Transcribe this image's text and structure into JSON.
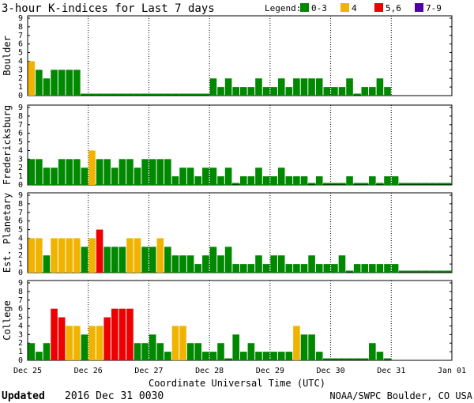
{
  "header": {
    "title": "3-hour K-indices for Last 7 days",
    "legend_label": "Legend:",
    "legend": [
      {
        "label": "0-3",
        "color": "#008800"
      },
      {
        "label": "4",
        "color": "#f0b400"
      },
      {
        "label": "5,6",
        "color": "#ee0000"
      },
      {
        "label": "7-9",
        "color": "#5000a0"
      }
    ]
  },
  "footer": {
    "updated_label": "Updated",
    "updated_value": "2016 Dec 31 0030",
    "credit": "NOAA/SWPC Boulder, CO USA"
  },
  "chart_data": {
    "type": "bar",
    "xlabel": "Coordinate Universal Time (UTC)",
    "x_ticks": [
      "Dec 25",
      "Dec 26",
      "Dec 27",
      "Dec 28",
      "Dec 29",
      "Dec 30",
      "Dec 31",
      "Jan 01"
    ],
    "ylim": [
      0,
      9
    ],
    "y_ticks": [
      0,
      1,
      2,
      3,
      4,
      5,
      6,
      7,
      8,
      9
    ],
    "interval_hours": 3,
    "intervals_per_day": 8,
    "color_scale": [
      {
        "range": "0-3",
        "color": "#008800"
      },
      {
        "range": "4",
        "color": "#f0b400"
      },
      {
        "range": "5,6",
        "color": "#ee0000"
      },
      {
        "range": "7-9",
        "color": "#5000a0"
      }
    ],
    "panels": [
      {
        "station": "Boulder",
        "values": [
          4,
          3,
          2,
          3,
          3,
          3,
          3,
          0,
          0,
          0,
          0,
          0,
          0,
          0,
          0,
          0,
          0,
          0,
          0,
          0,
          0,
          0,
          0,
          0,
          2,
          1,
          2,
          1,
          1,
          1,
          2,
          1,
          1,
          2,
          1,
          2,
          2,
          2,
          2,
          1,
          1,
          1,
          2,
          0,
          1,
          1,
          2,
          1
        ]
      },
      {
        "station": "Fredericksburg",
        "values": [
          3,
          3,
          2,
          2,
          3,
          3,
          3,
          2,
          4,
          3,
          3,
          2,
          3,
          3,
          2,
          3,
          3,
          3,
          3,
          1,
          2,
          2,
          1,
          2,
          2,
          1,
          2,
          0,
          1,
          1,
          2,
          1,
          1,
          2,
          1,
          1,
          1,
          0,
          1,
          0,
          0,
          0,
          1,
          0,
          0,
          1,
          0,
          1,
          1,
          0,
          0,
          0,
          0,
          0,
          0,
          0
        ]
      },
      {
        "station": "Est. Planetary",
        "values": [
          4,
          4,
          2,
          4,
          4,
          4,
          4,
          3,
          4,
          5,
          3,
          3,
          3,
          4,
          4,
          3,
          3,
          4,
          3,
          2,
          2,
          2,
          1,
          2,
          3,
          2,
          3,
          1,
          1,
          1,
          2,
          1,
          2,
          2,
          1,
          1,
          1,
          2,
          1,
          1,
          1,
          2,
          0,
          1,
          1,
          1,
          1,
          1,
          1,
          0,
          0,
          0,
          0,
          0,
          0,
          0
        ]
      },
      {
        "station": "College",
        "values": [
          2,
          1,
          2,
          6,
          5,
          4,
          4,
          3,
          4,
          4,
          5,
          6,
          6,
          6,
          2,
          2,
          3,
          2,
          1,
          4,
          4,
          2,
          2,
          1,
          1,
          2,
          0,
          3,
          1,
          2,
          1,
          1,
          1,
          1,
          1,
          4,
          3,
          3,
          1,
          0,
          0,
          0,
          0,
          0,
          0,
          2,
          1,
          0
        ]
      }
    ]
  }
}
